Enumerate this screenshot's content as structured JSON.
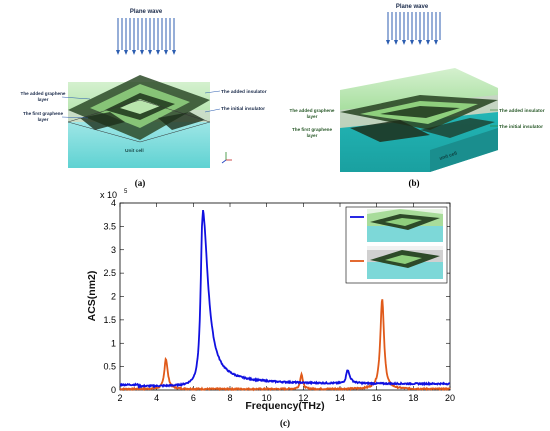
{
  "panel_a": {
    "plane_wave": "Plane wave",
    "added_graphene": [
      "The added graphene",
      "layer"
    ],
    "first_graphene": [
      "The first graphene",
      "layer"
    ],
    "added_insulator": "The added insulator",
    "initial_insulator": "The initial insulator",
    "unit_cell": "Unit cell",
    "caption": "(a)"
  },
  "panel_b": {
    "plane_wave": "Plane wave",
    "added_graphene": [
      "The added graphene",
      "layer"
    ],
    "first_graphene": [
      "The first graphene",
      "layer"
    ],
    "added_insulator": "The added insulator",
    "initial_insulator": "The initial insulator",
    "unit_cell": "unit cell",
    "caption": "(b)"
  },
  "caption_c": "(c)",
  "colors": {
    "blue": "#1010e0",
    "orange": "#e05a1a",
    "green_layer": "#9bd68c",
    "cyan": "#3cc9c9",
    "arrow": "#2c5db0"
  },
  "chart_data": {
    "type": "line",
    "title": "",
    "xlabel": "Frequency(THz)",
    "ylabel": "ACS(nm2)",
    "exponent_label": "x 10",
    "exponent_power": "5",
    "xlim": [
      2,
      20
    ],
    "ylim": [
      0,
      4
    ],
    "x_ticks": [
      2,
      4,
      6,
      8,
      10,
      12,
      14,
      16,
      18,
      20
    ],
    "y_ticks": [
      0,
      0.5,
      1,
      1.5,
      2,
      2.5,
      3,
      3.5,
      4
    ],
    "y_tick_labels": [
      "0",
      "0.5",
      "1",
      "1.5",
      "2",
      "2.5",
      "3",
      "3.5",
      "4"
    ],
    "series": [
      {
        "color": "#1010e0",
        "baseline": 0.08,
        "peaks": [
          {
            "x": 6.5,
            "y": 3.7,
            "width_left": 0.12,
            "width_right": 0.35
          },
          {
            "x": 14.4,
            "y": 0.37,
            "width_left": 0.08,
            "width_right": 0.15
          }
        ],
        "tail_level": 0.12
      },
      {
        "color": "#e05a1a",
        "baseline": 0.02,
        "peaks": [
          {
            "x": 4.5,
            "y": 0.67,
            "width_left": 0.1,
            "width_right": 0.12
          },
          {
            "x": 11.9,
            "y": 0.35,
            "width_left": 0.08,
            "width_right": 0.08
          },
          {
            "x": 16.3,
            "y": 1.95,
            "width_left": 0.12,
            "width_right": 0.12
          }
        ]
      }
    ]
  }
}
